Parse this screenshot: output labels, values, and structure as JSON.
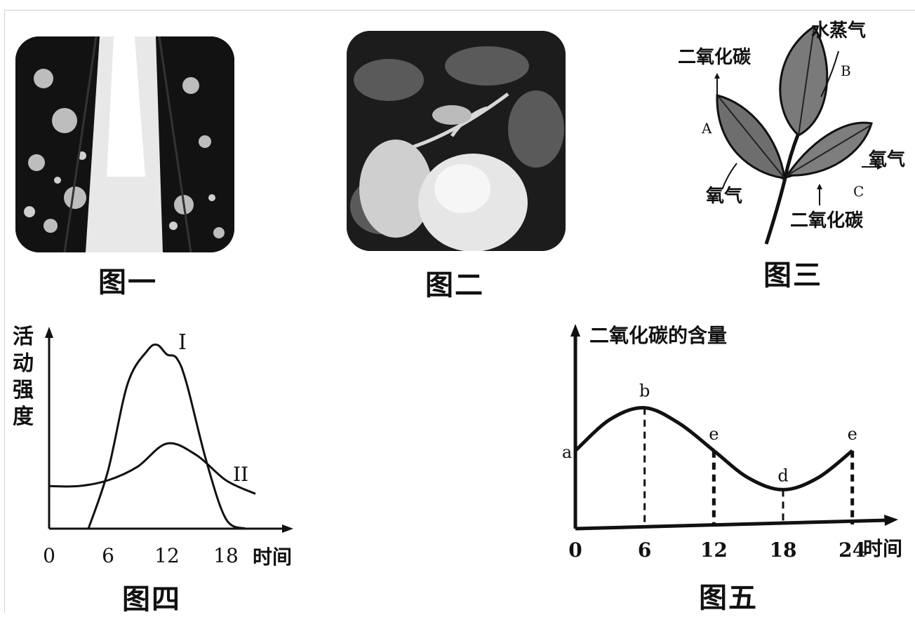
{
  "figures": {
    "fig1": {
      "caption": "图一"
    },
    "fig2": {
      "caption": "图二"
    },
    "fig3": {
      "caption": "图三",
      "labels": {
        "co2_top": "二氧化碳",
        "water_vapor": "水蒸气",
        "leaf_a": "A",
        "leaf_b": "B",
        "leaf_c": "C",
        "oxygen_left": "氧气",
        "oxygen_right": "氧气",
        "co2_bottom": "二氧化碳"
      }
    },
    "fig4": {
      "caption": "图四",
      "ylabel": "活动强度",
      "xlabel": "时间",
      "curve_labels": {
        "I": "I",
        "II": "II"
      },
      "chart_data": {
        "type": "line",
        "x_ticks": [
          "0",
          "6",
          "12",
          "18"
        ],
        "xlim": [
          0,
          24
        ],
        "series": [
          {
            "name": "I",
            "x": [
              4,
              6,
              8,
              10,
              11,
              12,
              13,
              14,
              16,
              18,
              20
            ],
            "y": [
              0,
              30,
              75,
              92,
              95,
              90,
              88,
              75,
              35,
              5,
              0
            ]
          },
          {
            "name": "II",
            "x": [
              0,
              3,
              6,
              9,
              12,
              15,
              18,
              21
            ],
            "y": [
              22,
              22,
              25,
              32,
              44,
              38,
              25,
              18
            ]
          }
        ]
      }
    },
    "fig5": {
      "caption": "图五",
      "ylabel": "二氧化碳的含量",
      "xlabel": "时间",
      "chart_data": {
        "type": "line",
        "x_ticks": [
          "0",
          "6",
          "12",
          "18",
          "24"
        ],
        "xlim": [
          0,
          27
        ],
        "series": [
          {
            "x": [
              0,
              3,
              6,
              9,
              12,
              15,
              18,
              21,
              24
            ],
            "y": [
              40,
              56,
              62,
              54,
              40,
              26,
              20,
              26,
              40
            ]
          }
        ],
        "points": [
          {
            "label": "a",
            "x": 0,
            "y": 40
          },
          {
            "label": "b",
            "x": 6,
            "y": 62
          },
          {
            "label": "e",
            "x": 12,
            "y": 40
          },
          {
            "label": "d",
            "x": 18,
            "y": 20
          },
          {
            "label": "e",
            "x": 24,
            "y": 40
          }
        ]
      }
    }
  }
}
